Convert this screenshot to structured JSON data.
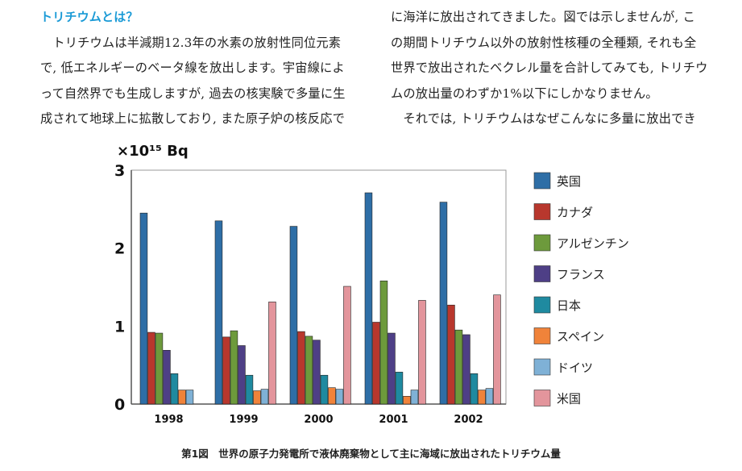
{
  "text": {
    "heading": "トリチウムとは？",
    "left_lines": [
      "　トリチウムは半減期12.3年の水素の放射性同位元素",
      "で, 低エネルギーのベータ線を放出します。宇宙線によ",
      "って自然界でも生成しますが, 過去の核実験で多量に生",
      "成されて地球上に拡散しており, また原子炉の核反応で"
    ],
    "right_lines": [
      "に海洋に放出されてきました。図では示しませんが, こ",
      "の期間トリチウム以外の放射性核種の全種類, それも全",
      "世界で放出されたベクレル量を合計してみても, トリチウ",
      "ムの放出量のわずか1%以下にしかなりません。",
      "　それでは, トリチウムはなぜこんなに多量に放出でき"
    ]
  },
  "caption": "第1図　世界の原子力発電所で液体廃棄物として主に海域に放出されたトリチウム量",
  "chart_data": {
    "type": "bar",
    "unit_label": "×10¹⁵ Bq",
    "categories": [
      "1998",
      "1999",
      "2000",
      "2001",
      "2002"
    ],
    "ylim": [
      0,
      3
    ],
    "yticks": [
      "0",
      "1",
      "2",
      "3"
    ],
    "legend_position": "right",
    "series": [
      {
        "name": "英国",
        "color": "#2e6ea6",
        "values": [
          2.45,
          2.35,
          2.28,
          2.71,
          2.59
        ]
      },
      {
        "name": "カナダ",
        "color": "#b8372d",
        "values": [
          0.92,
          0.86,
          0.93,
          1.05,
          1.27
        ]
      },
      {
        "name": "アルゼンチン",
        "color": "#6d9a3c",
        "values": [
          0.91,
          0.94,
          0.87,
          1.58,
          0.95
        ]
      },
      {
        "name": "フランス",
        "color": "#4e3f86",
        "values": [
          0.69,
          0.75,
          0.82,
          0.91,
          0.89
        ]
      },
      {
        "name": "日本",
        "color": "#1f8aa0",
        "values": [
          0.39,
          0.37,
          0.37,
          0.41,
          0.39
        ]
      },
      {
        "name": "スペイン",
        "color": "#f0833a",
        "values": [
          0.18,
          0.17,
          0.21,
          0.1,
          0.18
        ]
      },
      {
        "name": "ドイツ",
        "color": "#7fb1d6",
        "values": [
          0.18,
          0.19,
          0.19,
          0.18,
          0.2
        ]
      },
      {
        "name": "米国",
        "color": "#e3959c",
        "values": [
          0.0,
          1.31,
          1.51,
          1.33,
          1.4
        ]
      }
    ]
  }
}
